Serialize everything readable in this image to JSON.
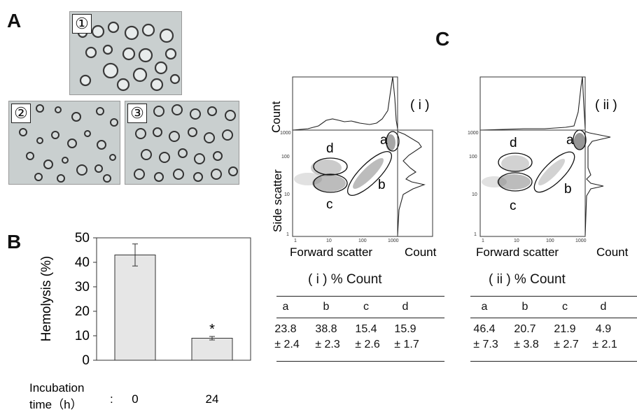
{
  "panels": {
    "a": "A",
    "b": "B",
    "c": "C"
  },
  "micrographs": [
    {
      "tag": "①"
    },
    {
      "tag": "②"
    },
    {
      "tag": "③"
    }
  ],
  "chart_data": {
    "type": "bar",
    "categories": [
      "0",
      "24"
    ],
    "values": [
      43,
      9
    ],
    "errors": [
      4.5,
      0.7
    ],
    "significance": [
      "",
      "*"
    ],
    "ylabel": "Hemolysis (%)",
    "xlabel": "Incubation time (h)",
    "xlabel_line1": "Incubation",
    "xlabel_line2": "time（h）",
    "xlabel_sep": ":",
    "ylim": [
      0,
      50
    ],
    "yticks": [
      "0",
      "10",
      "20",
      "30",
      "40",
      "50"
    ],
    "bar_color": "#e6e6e6"
  },
  "flow": {
    "count_label": "Count",
    "side_scatter_label": "Side scatter",
    "forward_scatter_label": "Forward scatter",
    "tick_labels": [
      "1",
      "10",
      "100",
      "1000"
    ],
    "gates": [
      "a",
      "b",
      "c",
      "d"
    ],
    "panels": [
      {
        "id": "( i )",
        "table_title": "( i )   % Count",
        "means": [
          "23.8",
          "38.8",
          "15.4",
          "15.9"
        ],
        "sds": [
          "± 2.4",
          "± 2.3",
          "± 2.6",
          "± 1.7"
        ]
      },
      {
        "id": "( ii )",
        "table_title": "( ii )   % Count",
        "means": [
          "46.4",
          "20.7",
          "21.9",
          "4.9"
        ],
        "sds": [
          "± 7.3",
          "± 3.8",
          "± 2.7",
          "± 2.1"
        ]
      }
    ]
  }
}
